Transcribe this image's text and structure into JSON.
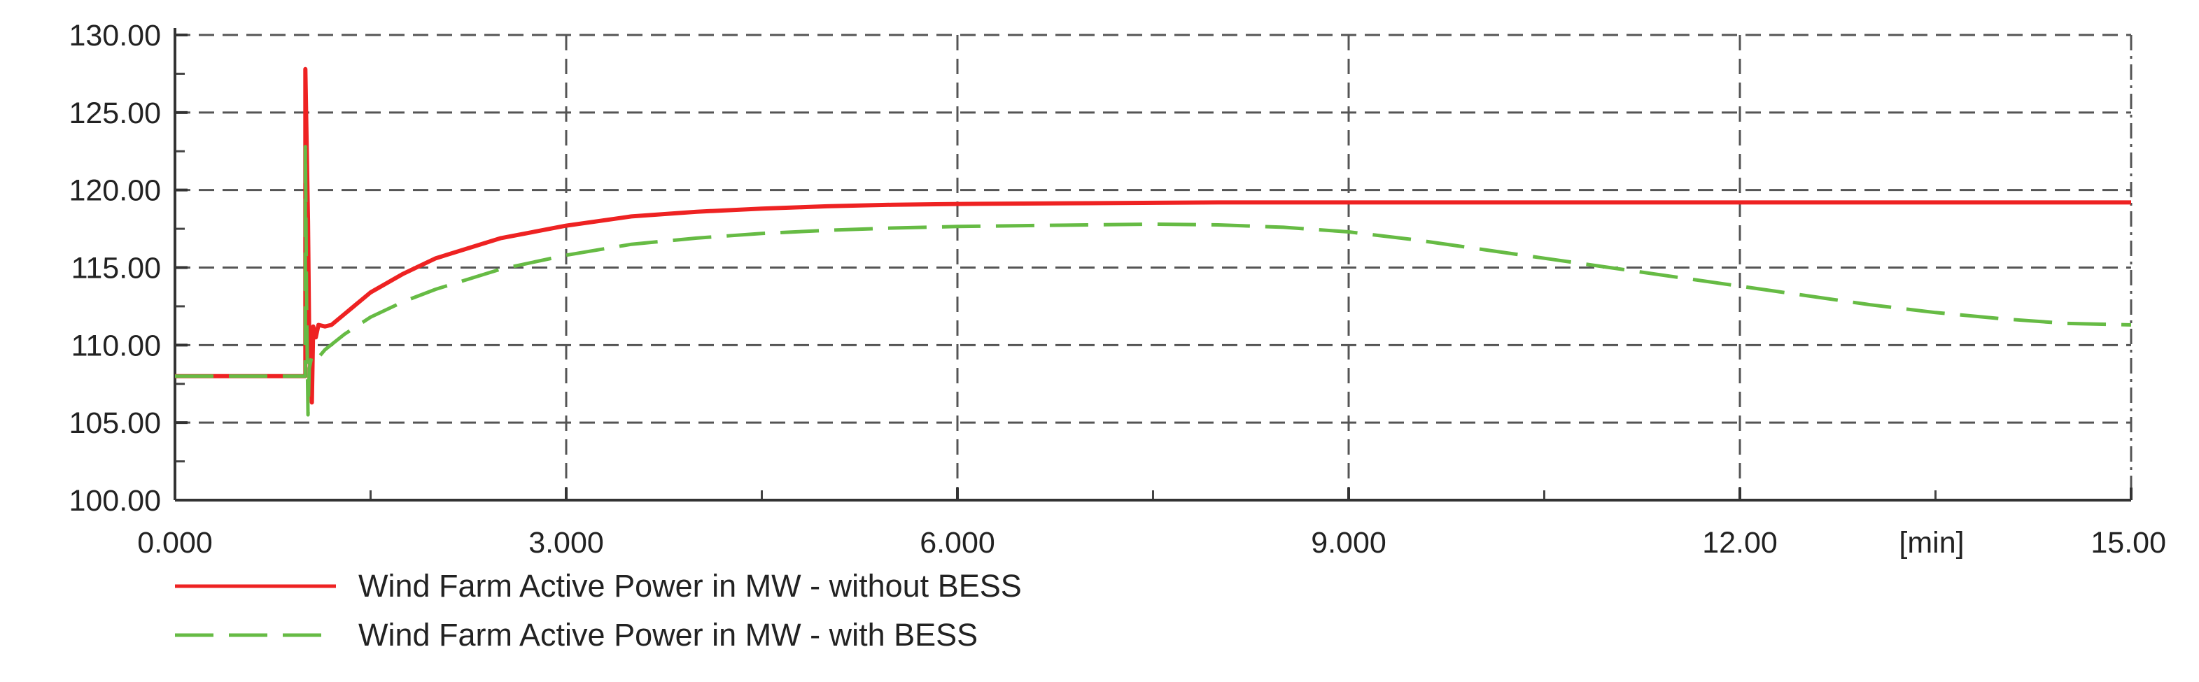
{
  "chart_data": {
    "type": "line",
    "xlabel": "",
    "ylabel": "",
    "x_unit_label": "[min]",
    "xlim": [
      0,
      15
    ],
    "ylim": [
      100,
      130
    ],
    "x_ticks": [
      {
        "value": 0,
        "label": "0.000"
      },
      {
        "value": 3,
        "label": "3.000"
      },
      {
        "value": 6,
        "label": "6.000"
      },
      {
        "value": 9,
        "label": "9.000"
      },
      {
        "value": 12,
        "label": "12.00"
      },
      {
        "value": 15,
        "label": "15.00"
      }
    ],
    "y_ticks": [
      {
        "value": 100,
        "label": "100.00"
      },
      {
        "value": 105,
        "label": "105.00"
      },
      {
        "value": 110,
        "label": "110.00"
      },
      {
        "value": 115,
        "label": "115.00"
      },
      {
        "value": 120,
        "label": "120.00"
      },
      {
        "value": 125,
        "label": "125.00"
      },
      {
        "value": 130,
        "label": "130.00"
      }
    ],
    "grid": true,
    "legend_position": "bottom-left",
    "series": [
      {
        "name": "Wind Farm Active Power in MW - without BESS",
        "color": "#ee2222",
        "dash": "solid",
        "x": [
          0,
          0.2,
          0.4,
          0.6,
          0.8,
          1.0,
          1.0,
          1.02,
          1.03,
          1.05,
          1.06,
          1.08,
          1.1,
          1.15,
          1.2,
          1.3,
          1.5,
          1.75,
          2.0,
          2.5,
          3.0,
          3.5,
          4.0,
          4.5,
          5.0,
          5.5,
          6.0,
          7.0,
          8.0,
          9.0,
          10.0,
          11.0,
          12.0,
          13.0,
          14.0,
          15.0
        ],
        "y": [
          108.0,
          108.0,
          108.0,
          108.0,
          108.0,
          108.0,
          127.8,
          118.0,
          110.0,
          106.3,
          111.2,
          110.5,
          111.3,
          111.2,
          111.3,
          112.0,
          113.4,
          114.6,
          115.6,
          116.9,
          117.7,
          118.3,
          118.6,
          118.8,
          118.95,
          119.05,
          119.1,
          119.15,
          119.2,
          119.2,
          119.2,
          119.2,
          119.2,
          119.2,
          119.2,
          119.2
        ]
      },
      {
        "name": "Wind Farm Active Power in MW - with BESS",
        "color": "#66bb44",
        "dash": "dashed",
        "x": [
          0,
          0.2,
          0.4,
          0.6,
          0.8,
          1.0,
          1.0,
          1.01,
          1.02,
          1.03,
          1.05,
          1.08,
          1.15,
          1.3,
          1.5,
          1.75,
          2.0,
          2.5,
          3.0,
          3.5,
          4.0,
          4.5,
          5.0,
          5.5,
          6.0,
          6.5,
          7.0,
          7.5,
          8.0,
          8.5,
          9.0,
          9.5,
          10.0,
          10.5,
          11.0,
          11.5,
          12.0,
          12.5,
          13.0,
          13.5,
          14.0,
          14.5,
          15.0
        ],
        "y": [
          108.0,
          108.0,
          108.0,
          108.0,
          108.0,
          108.0,
          122.8,
          112.0,
          105.5,
          108.5,
          109.3,
          109.0,
          109.7,
          110.7,
          111.8,
          112.8,
          113.6,
          114.9,
          115.8,
          116.5,
          116.9,
          117.2,
          117.4,
          117.55,
          117.65,
          117.7,
          117.75,
          117.8,
          117.75,
          117.6,
          117.3,
          116.8,
          116.2,
          115.6,
          115.0,
          114.4,
          113.8,
          113.2,
          112.6,
          112.1,
          111.7,
          111.4,
          111.3
        ]
      }
    ]
  }
}
